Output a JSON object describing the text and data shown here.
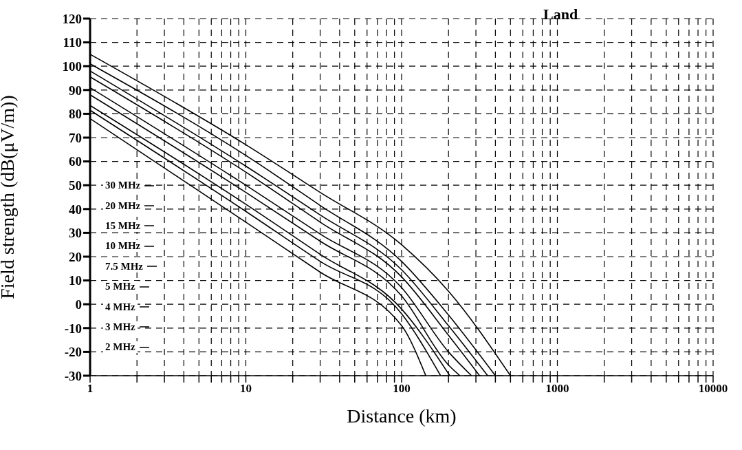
{
  "chart_data": {
    "type": "line",
    "xlabel": "Distance (km)",
    "ylabel": "Field strength (dB(μV/m))",
    "annotations": [
      "Land"
    ],
    "log": "x",
    "grid": true,
    "legend": "bottom left",
    "marker": "none",
    "line_style": "solid",
    "xlim": [
      1,
      10000
    ],
    "ylim": [
      -30,
      120
    ],
    "xticks": [
      1,
      {
        "value": 2,
        "label": null
      },
      {
        "value": 3,
        "label": null
      },
      {
        "value": 4,
        "label": null
      },
      {
        "value": 5,
        "label": null
      },
      {
        "value": 6,
        "label": null
      },
      {
        "value": 7,
        "label": null
      },
      {
        "value": 8,
        "label": null
      },
      {
        "value": 9,
        "label": null
      },
      10,
      {
        "value": 20,
        "label": null
      },
      {
        "value": 30,
        "label": null
      },
      {
        "value": 40,
        "label": null
      },
      {
        "value": 50,
        "label": null
      },
      {
        "value": 60,
        "label": null
      },
      {
        "value": 70,
        "label": null
      },
      {
        "value": 80,
        "label": null
      },
      {
        "value": 90,
        "label": null
      },
      100,
      {
        "value": 200,
        "label": null
      },
      {
        "value": 300,
        "label": null
      },
      {
        "value": 400,
        "label": null
      },
      {
        "value": 500,
        "label": null
      },
      {
        "value": 600,
        "label": null
      },
      {
        "value": 700,
        "label": null
      },
      {
        "value": 800,
        "label": null
      },
      {
        "value": 900,
        "label": null
      },
      1000,
      {
        "value": 2000,
        "label": null
      },
      {
        "value": 3000,
        "label": null
      },
      {
        "value": 4000,
        "label": null
      },
      {
        "value": 5000,
        "label": null
      },
      {
        "value": 6000,
        "label": null
      },
      {
        "value": 7000,
        "label": null
      },
      {
        "value": 8000,
        "label": null
      },
      {
        "value": 9000,
        "label": null
      },
      10000
    ],
    "yticks": [
      -30,
      -20,
      -10,
      0,
      10,
      20,
      30,
      40,
      50,
      60,
      70,
      80,
      90,
      100,
      110,
      120
    ],
    "series": [
      {
        "name": "30 MHz",
        "color": "#000000",
        "x": [
          1,
          10,
          30,
          100,
          143
        ],
        "values": [
          78,
          34.5,
          13.5,
          -9,
          -30
        ]
      },
      {
        "name": "20 MHz",
        "color": "#000000",
        "x": [
          1,
          10,
          30,
          100,
          178
        ],
        "values": [
          81.5,
          39,
          18,
          -4,
          -30
        ]
      },
      {
        "name": "15 MHz",
        "color": "#000000",
        "x": [
          1,
          10,
          30,
          100,
          204
        ],
        "values": [
          83.5,
          42,
          21,
          -2,
          -30
        ]
      },
      {
        "name": "10 MHz",
        "color": "#000000",
        "x": [
          1,
          10,
          30,
          100,
          200,
          237
        ],
        "values": [
          88,
          47,
          26.5,
          3.5,
          -25.5,
          -30
        ]
      },
      {
        "name": "7.5 MHz",
        "color": "#000000",
        "x": [
          1,
          10,
          30,
          100,
          200,
          281
        ],
        "values": [
          91,
          50,
          29.5,
          7,
          -20,
          -30
        ]
      },
      {
        "name": "5 MHz",
        "color": "#000000",
        "x": [
          1,
          10,
          30,
          100,
          200,
          317
        ],
        "values": [
          95.5,
          55.5,
          34.5,
          11.5,
          -13,
          -30
        ]
      },
      {
        "name": "4 MHz",
        "color": "#000000",
        "x": [
          1,
          10,
          30,
          100,
          200,
          357
        ],
        "values": [
          98,
          58,
          37.5,
          14.5,
          -9,
          -30
        ]
      },
      {
        "name": "3 MHz",
        "color": "#000000",
        "x": [
          1,
          10,
          30,
          100,
          200,
          400
        ],
        "values": [
          101,
          62.5,
          41.5,
          18,
          -4.5,
          -30
        ]
      },
      {
        "name": "2 MHz",
        "color": "#000000",
        "x": [
          1,
          10,
          30,
          100,
          200,
          500
        ],
        "values": [
          105,
          67,
          47,
          25,
          5.5,
          -30
        ]
      }
    ]
  }
}
